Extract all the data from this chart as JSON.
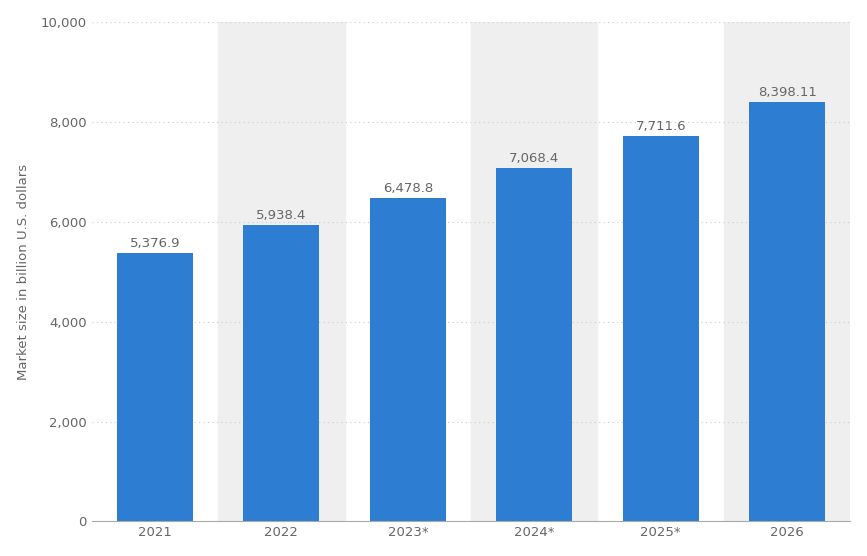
{
  "categories": [
    "2021",
    "2022",
    "2023*",
    "2024*",
    "2025*",
    "2026"
  ],
  "values": [
    5376.9,
    5938.4,
    6478.8,
    7068.4,
    7711.6,
    8398.11
  ],
  "labels": [
    "5,376.9",
    "5,938.4",
    "6,478.8",
    "7,068.4",
    "7,711.6",
    "8,398.11"
  ],
  "bar_color": "#2d7dd2",
  "background_color": "#ffffff",
  "plot_bg_color": "#ffffff",
  "shade_color": "#efefef",
  "ylabel": "Market size in billion U.S. dollars",
  "ylim": [
    0,
    10000
  ],
  "yticks": [
    0,
    2000,
    4000,
    6000,
    8000,
    10000
  ],
  "grid_color": "#cccccc",
  "text_color": "#666666",
  "label_fontsize": 9.5,
  "axis_fontsize": 9.5,
  "bar_width": 0.6,
  "shaded_columns": [
    1,
    3,
    5
  ]
}
